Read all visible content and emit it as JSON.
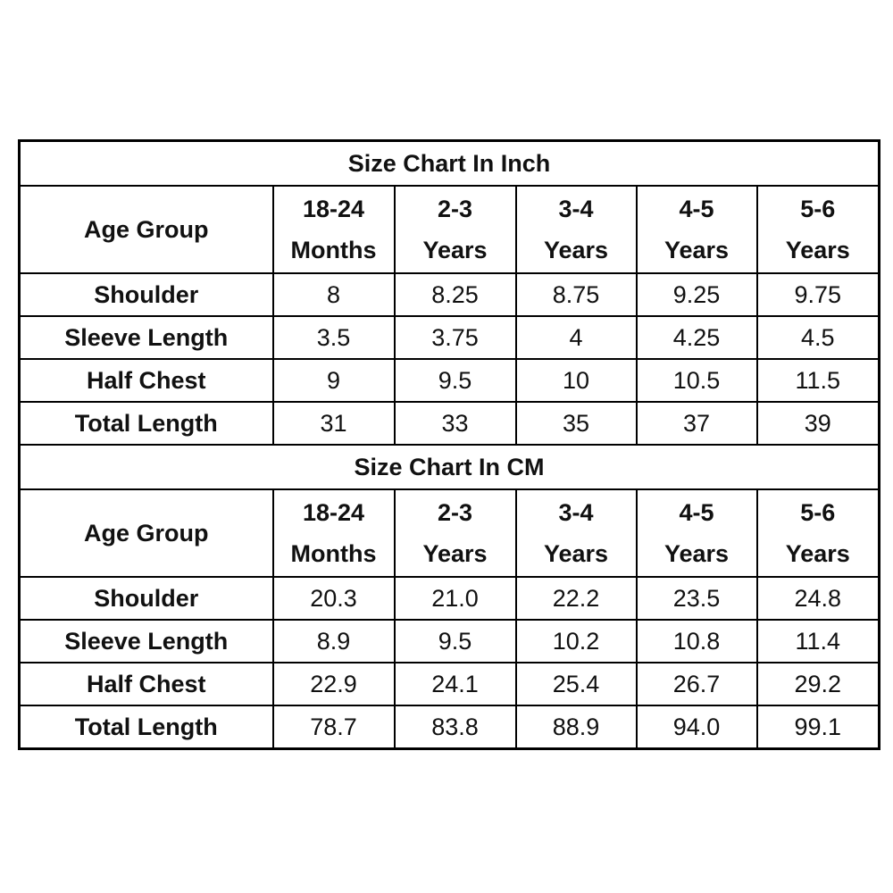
{
  "tables": [
    {
      "title": "Size Chart In Inch",
      "age_label": "Age Group",
      "columns": [
        {
          "top": "18-24",
          "bottom": "Months"
        },
        {
          "top": "2-3",
          "bottom": "Years"
        },
        {
          "top": "3-4",
          "bottom": "Years"
        },
        {
          "top": "4-5",
          "bottom": "Years"
        },
        {
          "top": "5-6",
          "bottom": "Years"
        }
      ],
      "rows": [
        {
          "label": "Shoulder",
          "values": [
            "8",
            "8.25",
            "8.75",
            "9.25",
            "9.75"
          ]
        },
        {
          "label": "Sleeve Length",
          "values": [
            "3.5",
            "3.75",
            "4",
            "4.25",
            "4.5"
          ]
        },
        {
          "label": "Half Chest",
          "values": [
            "9",
            "9.5",
            "10",
            "10.5",
            "11.5"
          ]
        },
        {
          "label": "Total Length",
          "values": [
            "31",
            "33",
            "35",
            "37",
            "39"
          ]
        }
      ]
    },
    {
      "title": "Size Chart In CM",
      "age_label": "Age Group",
      "columns": [
        {
          "top": "18-24",
          "bottom": "Months"
        },
        {
          "top": "2-3",
          "bottom": "Years"
        },
        {
          "top": "3-4",
          "bottom": "Years"
        },
        {
          "top": "4-5",
          "bottom": "Years"
        },
        {
          "top": "5-6",
          "bottom": "Years"
        }
      ],
      "rows": [
        {
          "label": "Shoulder",
          "values": [
            "20.3",
            "21.0",
            "22.2",
            "23.5",
            "24.8"
          ]
        },
        {
          "label": "Sleeve Length",
          "values": [
            "8.9",
            "9.5",
            "10.2",
            "10.8",
            "11.4"
          ]
        },
        {
          "label": "Half Chest",
          "values": [
            "22.9",
            "24.1",
            "25.4",
            "26.7",
            "29.2"
          ]
        },
        {
          "label": "Total Length",
          "values": [
            "78.7",
            "83.8",
            "88.9",
            "94.0",
            "99.1"
          ]
        }
      ]
    }
  ]
}
